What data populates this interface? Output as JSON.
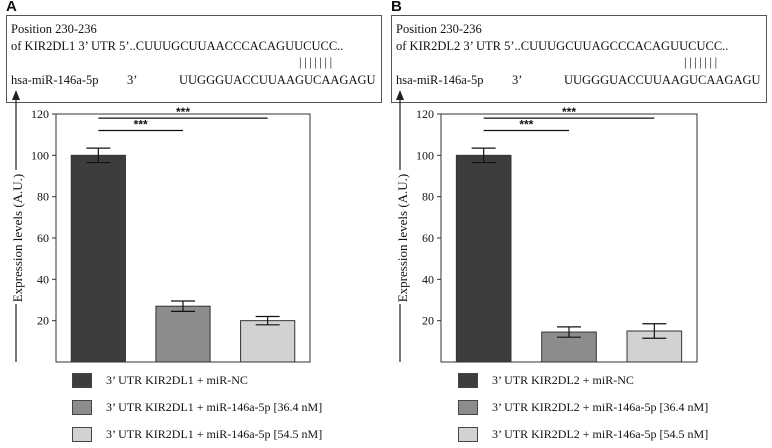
{
  "panels": [
    {
      "letter": "A",
      "seq": {
        "line1": "Position 230-236",
        "line2": "of KIR2DL1 3’ UTR 5’..CUUUGCUUAACCCACAGUUCUCC..",
        "pairs": "|||||||",
        "line3_label": "hsa-miR-146a-5p",
        "line3_dir": "3’",
        "line3_seq": "UUGGGUACCUUAAGUCAAGAGU"
      },
      "legend": [
        {
          "label": "3’ UTR KIR2DL1 +  miR-NC",
          "color": "#3d3d3d"
        },
        {
          "label": "3’ UTR KIR2DL1 +  miR-146a-5p [36.4 nM]",
          "color": "#8c8c8c"
        },
        {
          "label": "3’ UTR KIR2DL1 +  miR-146a-5p  [54.5 nM]",
          "color": "#d2d2d2"
        }
      ],
      "sig": [
        "***",
        "***"
      ]
    },
    {
      "letter": "B",
      "seq": {
        "line1": "Position 230-236",
        "line2": "of KIR2DL2 3’ UTR 5’..CUUUGCUUAGCCCACAGUUCUCC..",
        "pairs": "|||||||",
        "line3_label": "hsa-miR-146a-5p",
        "line3_dir": "3’",
        "line3_seq": "UUGGGUACCUUAAGUCAAGAGU"
      },
      "legend": [
        {
          "label": "3’ UTR KIR2DL2 +  miR-NC",
          "color": "#3d3d3d"
        },
        {
          "label": "3’ UTR KIR2DL2 +  miR-146a-5p [36.4 nM]",
          "color": "#8c8c8c"
        },
        {
          "label": "3’ UTR KIR2DL2 +  miR-146a-5p  [54.5 nM]",
          "color": "#d2d2d2"
        }
      ],
      "sig": [
        "***",
        "***"
      ]
    }
  ],
  "chart_data": [
    {
      "type": "bar",
      "ylabel": "Expression levels (A.U.)",
      "ylim": [
        0,
        120
      ],
      "yticks": [
        20,
        40,
        60,
        80,
        100,
        120
      ],
      "categories": [
        "3’ UTR KIR2DL1 +  miR-NC",
        "3’ UTR KIR2DL1 +  miR-146a-5p [36.4 nM]",
        "3’ UTR KIR2DL1 +  miR-146a-5p  [54.5 nM]"
      ],
      "values": [
        100,
        27,
        20
      ],
      "errors": [
        3.5,
        2.5,
        2
      ],
      "colors": [
        "#3d3d3d",
        "#8c8c8c",
        "#d2d2d2"
      ],
      "significance": [
        {
          "from": 0,
          "to": 1,
          "label": "***",
          "y": 112
        },
        {
          "from": 0,
          "to": 2,
          "label": "***",
          "y": 118
        }
      ]
    },
    {
      "type": "bar",
      "ylabel": "Expression levels (A.U.)",
      "ylim": [
        0,
        120
      ],
      "yticks": [
        20,
        40,
        60,
        80,
        100,
        120
      ],
      "categories": [
        "3’ UTR KIR2DL2 +  miR-NC",
        "3’ UTR KIR2DL2 +  miR-146a-5p [36.4 nM]",
        "3’ UTR KIR2DL2 +  miR-146a-5p  [54.5 nM]"
      ],
      "values": [
        100,
        14.5,
        15
      ],
      "errors": [
        3.5,
        2.5,
        3.5
      ],
      "colors": [
        "#3d3d3d",
        "#8c8c8c",
        "#d2d2d2"
      ],
      "significance": [
        {
          "from": 0,
          "to": 1,
          "label": "***",
          "y": 112
        },
        {
          "from": 0,
          "to": 2,
          "label": "***",
          "y": 118
        }
      ]
    }
  ]
}
